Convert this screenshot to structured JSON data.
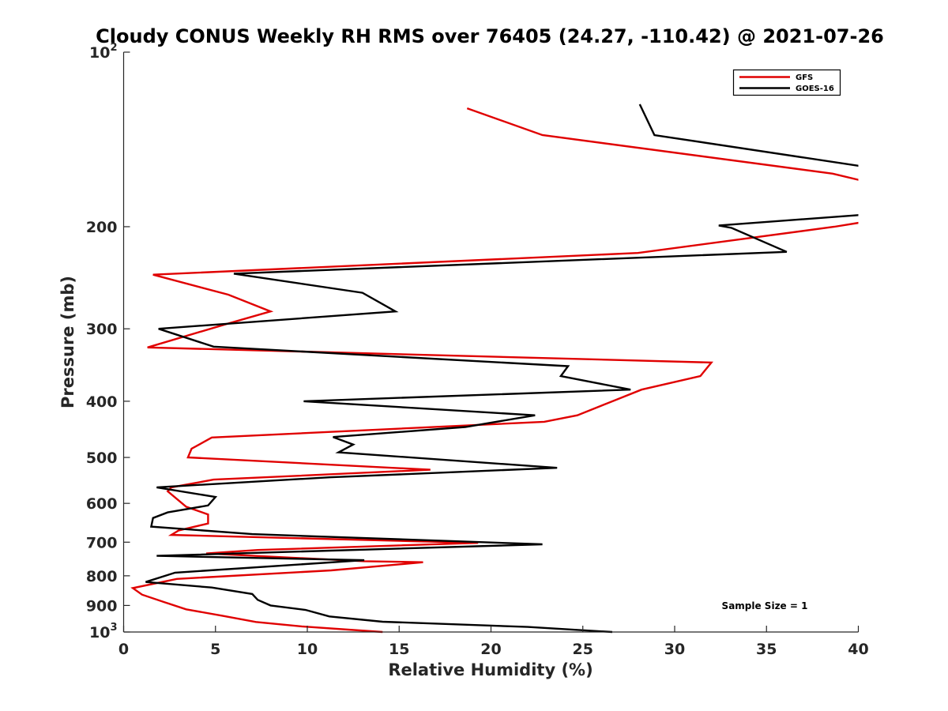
{
  "chart_data": {
    "type": "line",
    "title": "Cloudy CONUS Weekly RH RMS over 76405 (24.27, -110.42) @ 2021-07-26",
    "xlabel": "Relative Humidity (%)",
    "ylabel": "Pressure (mb)",
    "xlim": [
      0,
      40
    ],
    "ylim": [
      100,
      1000
    ],
    "yscale": "log",
    "y_reversed": true,
    "grid": false,
    "x_ticks": [
      0,
      5,
      10,
      15,
      20,
      25,
      30,
      35,
      40
    ],
    "y_ticks": [
      {
        "value": 100,
        "base": "10",
        "exp": "2"
      },
      {
        "value": 200,
        "label": "200"
      },
      {
        "value": 300,
        "label": "300"
      },
      {
        "value": 400,
        "label": "400"
      },
      {
        "value": 500,
        "label": "500"
      },
      {
        "value": 600,
        "label": "600"
      },
      {
        "value": 700,
        "label": "700"
      },
      {
        "value": 800,
        "label": "800"
      },
      {
        "value": 900,
        "label": "900"
      },
      {
        "value": 1000,
        "base": "10",
        "exp": "3"
      }
    ],
    "legend_position": "top-right",
    "annotation": "Sample Size = 1",
    "series": [
      {
        "name": "GFS",
        "color": "#e00000",
        "points": [
          [
            18.7,
            125
          ],
          [
            22.8,
            139
          ],
          [
            38.6,
            162
          ],
          [
            40,
            166
          ],
          [
            40.5,
            167
          ],
          [
            40.5,
            195
          ],
          [
            40,
            197
          ],
          [
            38.7,
            200
          ],
          [
            28,
            222
          ],
          [
            1.6,
            242
          ],
          [
            5.7,
            262
          ],
          [
            8.0,
            280
          ],
          [
            5.5,
            295
          ],
          [
            1.3,
            323
          ],
          [
            32.0,
            343
          ],
          [
            31.4,
            362
          ],
          [
            28.2,
            382
          ],
          [
            24.7,
            423
          ],
          [
            22.9,
            434
          ],
          [
            4.8,
            462
          ],
          [
            3.7,
            483
          ],
          [
            3.5,
            500
          ],
          [
            16.7,
            525
          ],
          [
            4.9,
            546
          ],
          [
            2.6,
            563
          ],
          [
            2.4,
            572
          ],
          [
            3.4,
            608
          ],
          [
            4.6,
            627
          ],
          [
            4.6,
            650
          ],
          [
            3.0,
            668
          ],
          [
            2.6,
            680
          ],
          [
            19.3,
            702
          ],
          [
            7.3,
            722
          ],
          [
            4.5,
            732
          ],
          [
            13.1,
            755
          ],
          [
            16.3,
            758
          ],
          [
            11.3,
            783
          ],
          [
            2.9,
            810
          ],
          [
            0.5,
            840
          ],
          [
            1.0,
            862
          ],
          [
            2.2,
            888
          ],
          [
            3.4,
            914
          ],
          [
            5.4,
            938
          ],
          [
            7.2,
            961
          ],
          [
            9.7,
            978
          ],
          [
            14.1,
            1000
          ]
        ]
      },
      {
        "name": "GOES-16",
        "color": "#000000",
        "points": [
          [
            28.1,
            123
          ],
          [
            28.9,
            139
          ],
          [
            40,
            157
          ],
          [
            40.5,
            158
          ],
          [
            40.5,
            191
          ],
          [
            40,
            191
          ],
          [
            32.4,
            199
          ],
          [
            33.1,
            201
          ],
          [
            36.1,
            221
          ],
          [
            6.0,
            241
          ],
          [
            13.0,
            260
          ],
          [
            14.8,
            280
          ],
          [
            1.9,
            300
          ],
          [
            4.9,
            322
          ],
          [
            24.2,
            348
          ],
          [
            23.8,
            362
          ],
          [
            27.6,
            382
          ],
          [
            9.8,
            400
          ],
          [
            22.4,
            423
          ],
          [
            18.6,
            443
          ],
          [
            11.4,
            461
          ],
          [
            12.5,
            475
          ],
          [
            11.7,
            490
          ],
          [
            23.6,
            521
          ],
          [
            11.2,
            541
          ],
          [
            1.8,
            563
          ],
          [
            5.0,
            585
          ],
          [
            4.6,
            605
          ],
          [
            2.4,
            622
          ],
          [
            1.6,
            636
          ],
          [
            1.5,
            658
          ],
          [
            7.0,
            678
          ],
          [
            22.8,
            706
          ],
          [
            1.8,
            739
          ],
          [
            13.1,
            752
          ],
          [
            2.8,
            790
          ],
          [
            1.2,
            820
          ],
          [
            4.8,
            838
          ],
          [
            7.0,
            860
          ],
          [
            7.3,
            880
          ],
          [
            8.0,
            900
          ],
          [
            9.9,
            916
          ],
          [
            11.2,
            940
          ],
          [
            14.1,
            960
          ],
          [
            22.0,
            980
          ],
          [
            26.6,
            1000
          ]
        ]
      }
    ]
  }
}
